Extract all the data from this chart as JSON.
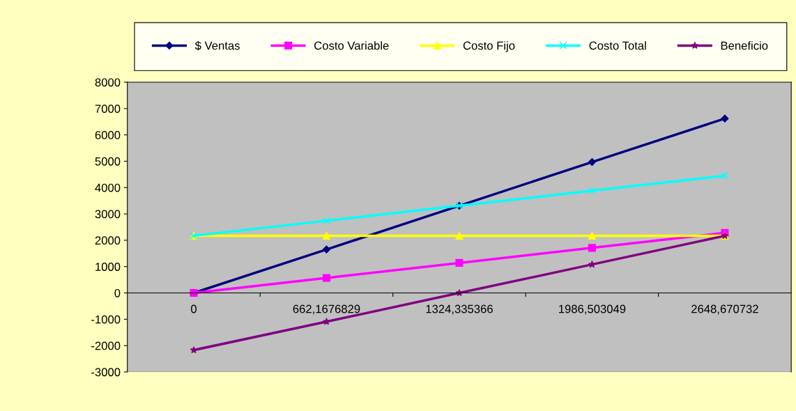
{
  "chart_data": {
    "type": "line",
    "categories": [
      "0",
      "662,1676829",
      "1324,335366",
      "1986,503049",
      "2648,670732"
    ],
    "series": [
      {
        "name": "$ Ventas",
        "color": "#000080",
        "marker": "diamond",
        "values": [
          0,
          1650,
          3310,
          4970,
          6620
        ]
      },
      {
        "name": "Costo Variable",
        "color": "#ff00ff",
        "marker": "square",
        "values": [
          0,
          570,
          1140,
          1710,
          2280
        ]
      },
      {
        "name": "Costo Fijo",
        "color": "#ffff00",
        "marker": "triangle",
        "values": [
          2170,
          2170,
          2170,
          2170,
          2170
        ]
      },
      {
        "name": "Costo Total",
        "color": "#00ffff",
        "marker": "cross",
        "values": [
          2170,
          2740,
          3310,
          3880,
          4450
        ]
      },
      {
        "name": "Beneficio",
        "color": "#800080",
        "marker": "star",
        "values": [
          -2170,
          -1090,
          0,
          1080,
          2170
        ]
      }
    ],
    "ylim": [
      -3000,
      8000
    ],
    "yticks": [
      -3000,
      -2000,
      -1000,
      0,
      1000,
      2000,
      3000,
      4000,
      5000,
      6000,
      7000,
      8000
    ],
    "grid": false,
    "legend": "top",
    "line_style": "solid"
  }
}
